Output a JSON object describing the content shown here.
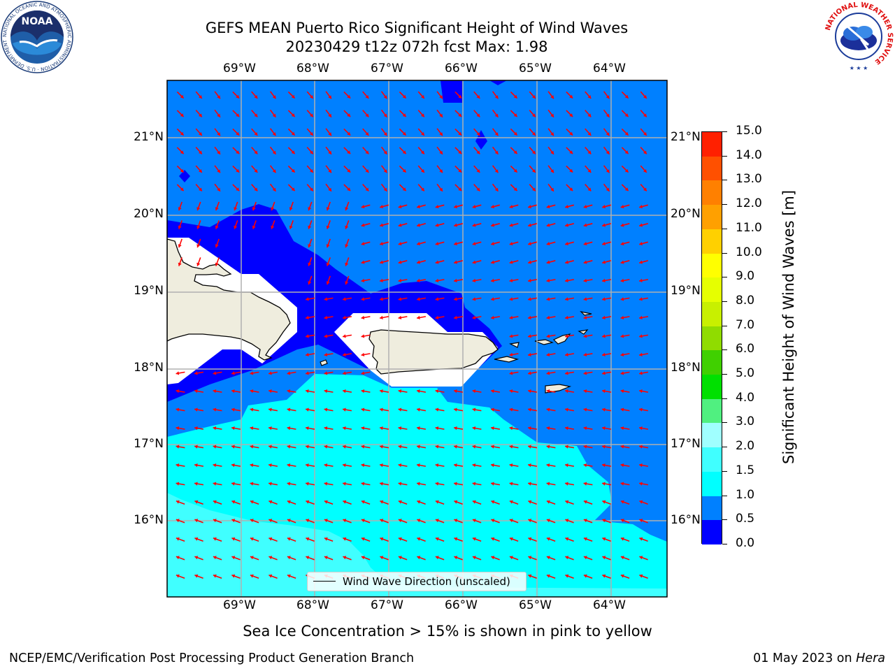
{
  "title": {
    "line1": "GEFS MEAN Puerto Rico Significant Height of Wind Waves",
    "line2": "20230429 t12z 072h fcst   Max: 1.98"
  },
  "map": {
    "lon_labels": [
      "69°W",
      "68°W",
      "67°W",
      "66°W",
      "65°W",
      "64°W"
    ],
    "lat_labels": [
      "21°N",
      "20°N",
      "19°N",
      "18°N",
      "17°N",
      "16°N"
    ],
    "legend_label": "Wind Wave Direction (unscaled)",
    "arrow_color": "#ff0000",
    "coastline_color": "#000000",
    "land_color": "#efedde"
  },
  "colorbar": {
    "title": "Significant Height of Wind Waves [m]",
    "levels": [
      "0.0",
      "0.5",
      "1.0",
      "1.5",
      "2.0",
      "3.0",
      "4.0",
      "5.0",
      "6.0",
      "7.0",
      "8.0",
      "9.0",
      "10.0",
      "11.0",
      "12.0",
      "13.0",
      "14.0",
      "15.0"
    ],
    "colors": [
      "#0000ff",
      "#0080ff",
      "#00ffff",
      "#40ffff",
      "#a0ffff",
      "#50f080",
      "#00e000",
      "#40d000",
      "#90dc00",
      "#c8f000",
      "#e6ff00",
      "#ffff00",
      "#ffd000",
      "#ffa000",
      "#ff8000",
      "#ff5000",
      "#ff2000"
    ]
  },
  "subtitle": "Sea Ice Concentration > 15% is shown in pink to yellow",
  "footer": {
    "left": "NCEP/EMC/Verification Post Processing Product Generation Branch",
    "date": "01 May 2023 on ",
    "host": "Hera"
  },
  "logos": {
    "noaa_text": "NOAA",
    "noaa_ring_text": "NATIONAL OCEANIC AND ATMOSPHERIC ADMINISTRATION · U.S. DEPARTMENT OF COMMERCE",
    "nws_ring_text": "NATIONAL WEATHER SERVICE"
  }
}
